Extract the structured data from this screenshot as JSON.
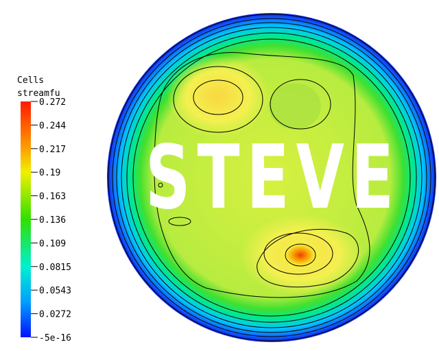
{
  "legend": {
    "title_lines": [
      "Cells",
      "streamfu"
    ],
    "ticks": [
      "0.272",
      "0.244",
      "0.217",
      "0.19",
      "0.163",
      "0.136",
      "0.109",
      "0.0815",
      "0.0543",
      "0.0272",
      "-5e-16"
    ]
  },
  "overlay_text": "STEVE"
}
